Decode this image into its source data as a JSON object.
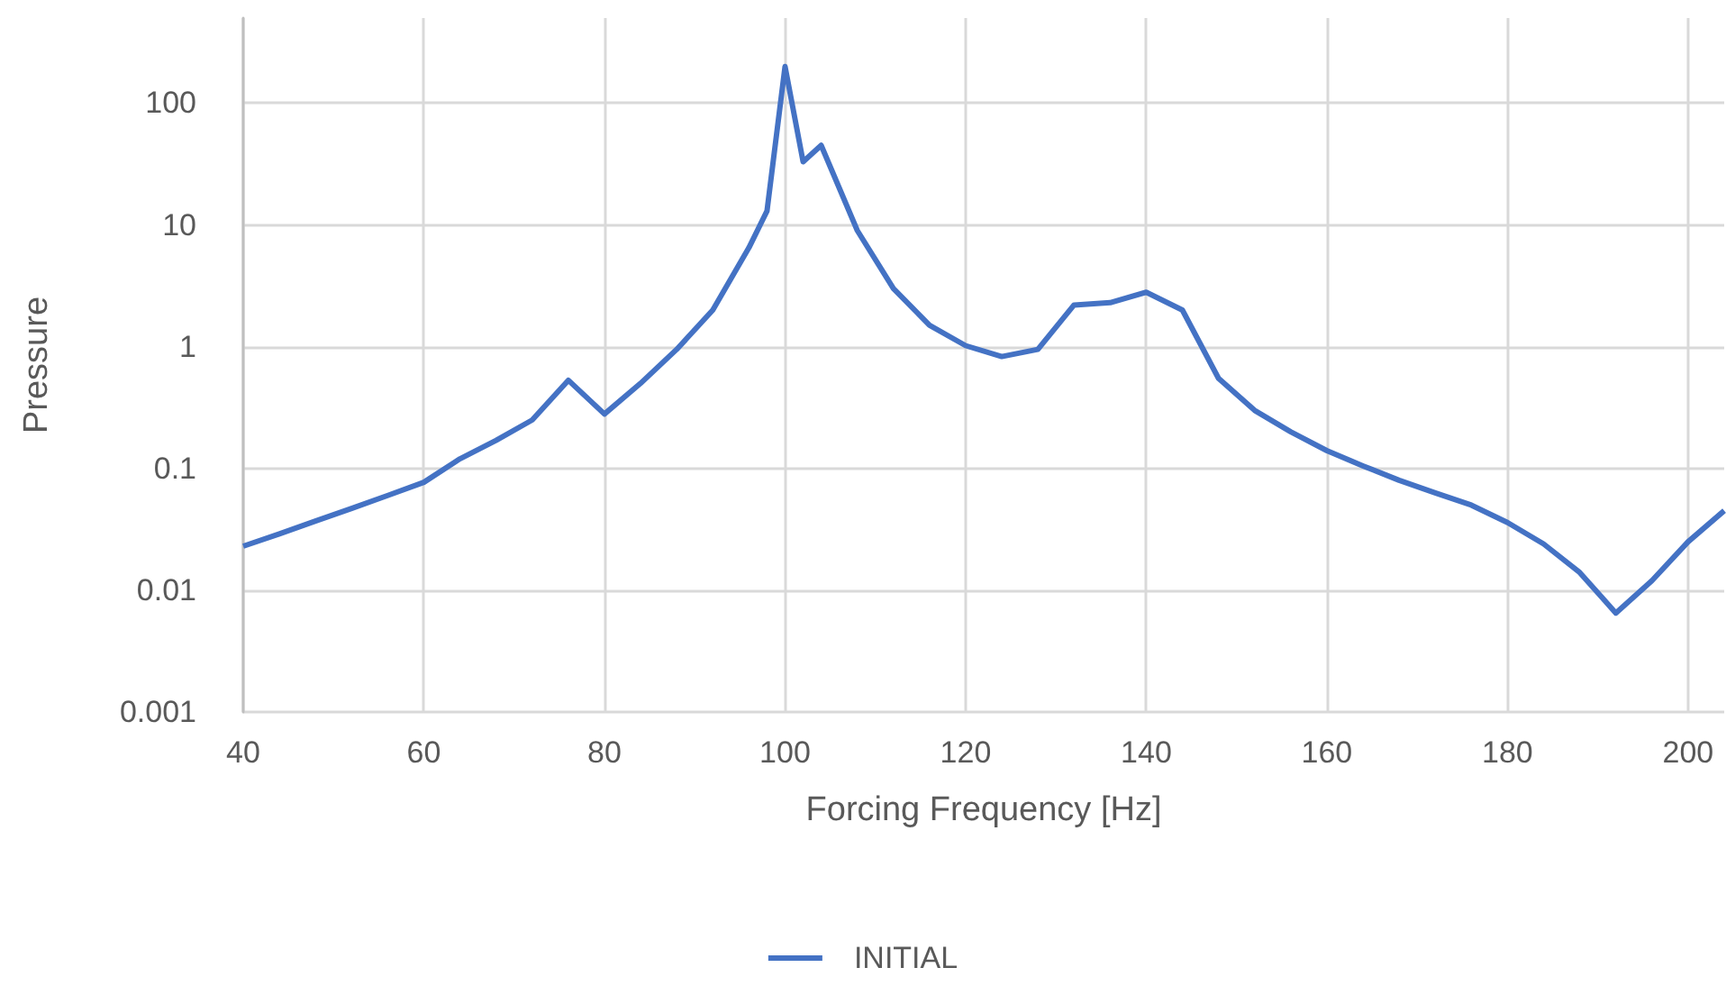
{
  "chart_data": {
    "type": "line",
    "xlabel": "Forcing Frequency [Hz]",
    "ylabel": "Pressure",
    "x": [
      40,
      44,
      48,
      52,
      56,
      60,
      64,
      68,
      72,
      76,
      80,
      84,
      88,
      92,
      96,
      98,
      100,
      102,
      104,
      108,
      112,
      116,
      120,
      124,
      128,
      132,
      136,
      140,
      144,
      148,
      152,
      156,
      160,
      164,
      168,
      172,
      176,
      180,
      184,
      188,
      192,
      196,
      200,
      204
    ],
    "series": [
      {
        "name": "INITIAL",
        "color": "#4472c4",
        "values": [
          0.023,
          0.029,
          0.037,
          0.047,
          0.06,
          0.077,
          0.12,
          0.17,
          0.25,
          0.53,
          0.28,
          0.5,
          0.95,
          2.0,
          6.5,
          13,
          200,
          33,
          45,
          9,
          3,
          1.5,
          1.02,
          0.83,
          0.95,
          2.2,
          2.3,
          2.8,
          2.0,
          0.55,
          0.3,
          0.2,
          0.14,
          0.105,
          0.08,
          0.063,
          0.05,
          0.036,
          0.024,
          0.014,
          0.0065,
          0.012,
          0.025,
          0.045
        ]
      }
    ],
    "xlim": [
      40,
      204
    ],
    "xticks": [
      40,
      60,
      80,
      100,
      120,
      140,
      160,
      180,
      200
    ],
    "ylim": [
      0.001,
      500
    ],
    "yticks": [
      0.001,
      0.01,
      0.1,
      1,
      10,
      100
    ],
    "log": "y",
    "grid": true,
    "legend": "bottom",
    "marker": "none",
    "line_style": "solid"
  }
}
